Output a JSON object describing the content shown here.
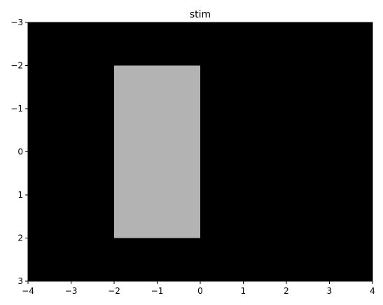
{
  "chart_data": {
    "type": "heatmap",
    "title": "stim",
    "xlabel": "",
    "ylabel": "",
    "xlim": [
      -4,
      4
    ],
    "ylim": [
      3,
      -3
    ],
    "y_inverted": true,
    "grid": false,
    "background_color": "#000000",
    "x_ticks": [
      -4,
      -3,
      -2,
      -1,
      0,
      1,
      2,
      3,
      4
    ],
    "x_tick_labels": [
      "−4",
      "−3",
      "−2",
      "−1",
      "0",
      "1",
      "2",
      "3",
      "4"
    ],
    "y_ticks": [
      -3,
      -2,
      -1,
      0,
      1,
      2,
      3
    ],
    "y_tick_labels": [
      "−3",
      "−2",
      "−1",
      "0",
      "1",
      "2",
      "3"
    ],
    "regions": [
      {
        "x": [
          -2,
          0
        ],
        "y": [
          -2,
          2
        ],
        "color": "#b3b3b3"
      }
    ]
  }
}
